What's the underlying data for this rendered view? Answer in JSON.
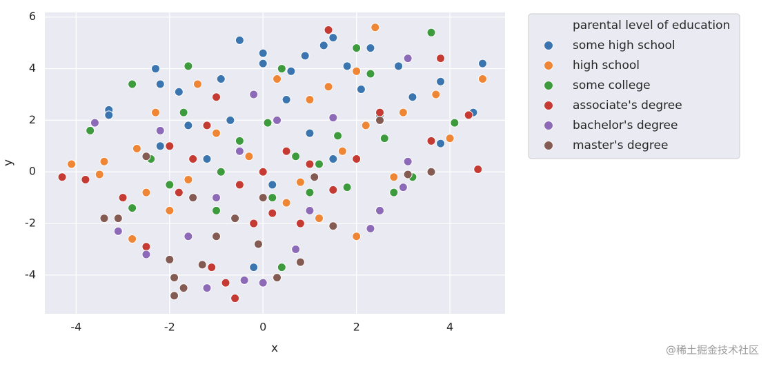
{
  "chart_data": {
    "type": "scatter",
    "x_label": "x",
    "y_label": "y",
    "legend_title": "parental level of education",
    "legend_position": "outside upper right",
    "grid": true,
    "xlim": [
      -4.67,
      5.18
    ],
    "ylim": [
      -5.5,
      6.18
    ],
    "xticks": [
      -4,
      -2,
      0,
      2,
      4
    ],
    "yticks": [
      -4,
      -2,
      0,
      2,
      4,
      6
    ],
    "series": [
      {
        "name": "some high school",
        "color": "#3b75af",
        "x": [
          -0.5,
          0,
          -2.3,
          -2.2,
          -3.3,
          -3.3,
          0.9,
          1.5,
          1.3,
          2.3,
          4.7,
          4.5,
          3.8,
          3.8,
          2.9,
          -1.8,
          -0.9,
          0,
          1.8,
          3.2,
          0.6,
          -0.2,
          -1.6,
          1.0,
          0.5,
          2.1,
          -0.7,
          1.5,
          2.5,
          -2.2,
          0.2,
          -1.2
        ],
        "y": [
          5.1,
          4.6,
          4.0,
          3.4,
          2.4,
          2.2,
          4.5,
          5.2,
          4.9,
          4.8,
          4.2,
          2.3,
          1.1,
          3.5,
          4.1,
          3.1,
          3.6,
          4.2,
          4.1,
          2.9,
          3.9,
          -3.7,
          1.8,
          1.5,
          2.8,
          3.2,
          2.0,
          0.5,
          2.2,
          1.0,
          -0.5,
          0.5
        ]
      },
      {
        "name": "high school",
        "color": "#ef8636",
        "x": [
          2.4,
          -4.1,
          4.7,
          3.7,
          4.0,
          -2.8,
          2.0,
          2.0,
          -2.3,
          -1.4,
          1.4,
          -3.4,
          -2.7,
          3.0,
          0.3,
          -3.5,
          2.8,
          1.0,
          -1.0,
          0.5,
          -2.0,
          1.7,
          -0.3,
          2.2,
          -1.6,
          0.8,
          -2.5,
          1.2
        ],
        "y": [
          5.6,
          0.3,
          3.6,
          3.0,
          1.3,
          -2.6,
          -2.5,
          3.9,
          2.3,
          3.4,
          3.3,
          0.4,
          0.9,
          2.3,
          3.6,
          -0.1,
          -0.2,
          2.8,
          1.5,
          -1.2,
          -1.5,
          0.8,
          0.6,
          1.8,
          -0.3,
          -0.4,
          -0.8,
          -1.8
        ]
      },
      {
        "name": "some college",
        "color": "#3d9a3d",
        "x": [
          3.6,
          -3.7,
          -1.6,
          -2.8,
          2.0,
          0.4,
          4.1,
          3.2,
          2.8,
          0.4,
          -2.8,
          -2.0,
          1.8,
          0.1,
          -0.5,
          1.2,
          2.3,
          -1.7,
          -1.0,
          0.7,
          1.6,
          -2.4,
          -0.9,
          2.6,
          0.2,
          1.0
        ],
        "y": [
          5.4,
          1.6,
          4.1,
          3.4,
          4.8,
          4.0,
          1.9,
          -0.2,
          -0.8,
          -3.7,
          -1.4,
          -0.5,
          -0.6,
          1.9,
          1.2,
          0.3,
          3.8,
          2.3,
          -1.5,
          0.6,
          1.4,
          0.5,
          0.0,
          1.3,
          -1.0,
          -0.8
        ]
      },
      {
        "name": "associate's degree",
        "color": "#c53a32",
        "x": [
          1.4,
          -4.3,
          -3.8,
          4.6,
          4.4,
          3.8,
          3.6,
          -0.6,
          -1.1,
          -0.8,
          -2.5,
          -1.0,
          0.5,
          -0.5,
          1.0,
          -1.5,
          0.2,
          -2.0,
          2.5,
          1.5,
          -0.2,
          0.8,
          -1.8,
          0.0,
          -1.2,
          2.0,
          -3.0
        ],
        "y": [
          5.5,
          -0.2,
          -0.3,
          0.1,
          2.2,
          4.4,
          1.2,
          -4.9,
          -3.7,
          -4.3,
          -2.9,
          2.9,
          0.8,
          -0.5,
          0.3,
          0.5,
          -1.6,
          1.0,
          2.3,
          -0.7,
          -2.0,
          -2.0,
          -0.8,
          0.0,
          1.8,
          0.5,
          -1.0
        ]
      },
      {
        "name": "bachelor's degree",
        "color": "#8d6ab8",
        "x": [
          -3.6,
          3.1,
          -0.4,
          0,
          -1.2,
          3.0,
          2.5,
          2.3,
          -3.1,
          -2.5,
          -0.2,
          1.5,
          -2.2,
          3.1,
          0.3,
          -1.0,
          1.0,
          -0.5,
          0.7,
          -1.6
        ],
        "y": [
          1.9,
          4.4,
          -4.2,
          -4.3,
          -4.5,
          -0.6,
          -1.5,
          -2.2,
          -2.3,
          -3.2,
          3.0,
          2.1,
          1.6,
          0.4,
          2.0,
          -1.0,
          -1.5,
          0.8,
          -3.0,
          -2.5
        ]
      },
      {
        "name": "master's degree",
        "color": "#845b53",
        "x": [
          -1.9,
          -1.9,
          -1.7,
          -3.4,
          -3.1,
          0.3,
          3.6,
          2.5,
          3.1,
          -2.0,
          -1.3,
          -0.1,
          -1.0,
          0.8,
          -0.6,
          1.5,
          0.0,
          -2.5,
          1.1,
          -1.5
        ],
        "y": [
          -4.8,
          -4.1,
          -4.5,
          -1.8,
          -1.8,
          -4.1,
          0.0,
          2.0,
          -0.1,
          -3.4,
          -3.6,
          -2.8,
          -2.5,
          -3.5,
          -1.8,
          -2.1,
          -1.0,
          0.6,
          -0.2,
          -1.0
        ]
      }
    ]
  },
  "watermark": "@稀土掘金技术社区"
}
